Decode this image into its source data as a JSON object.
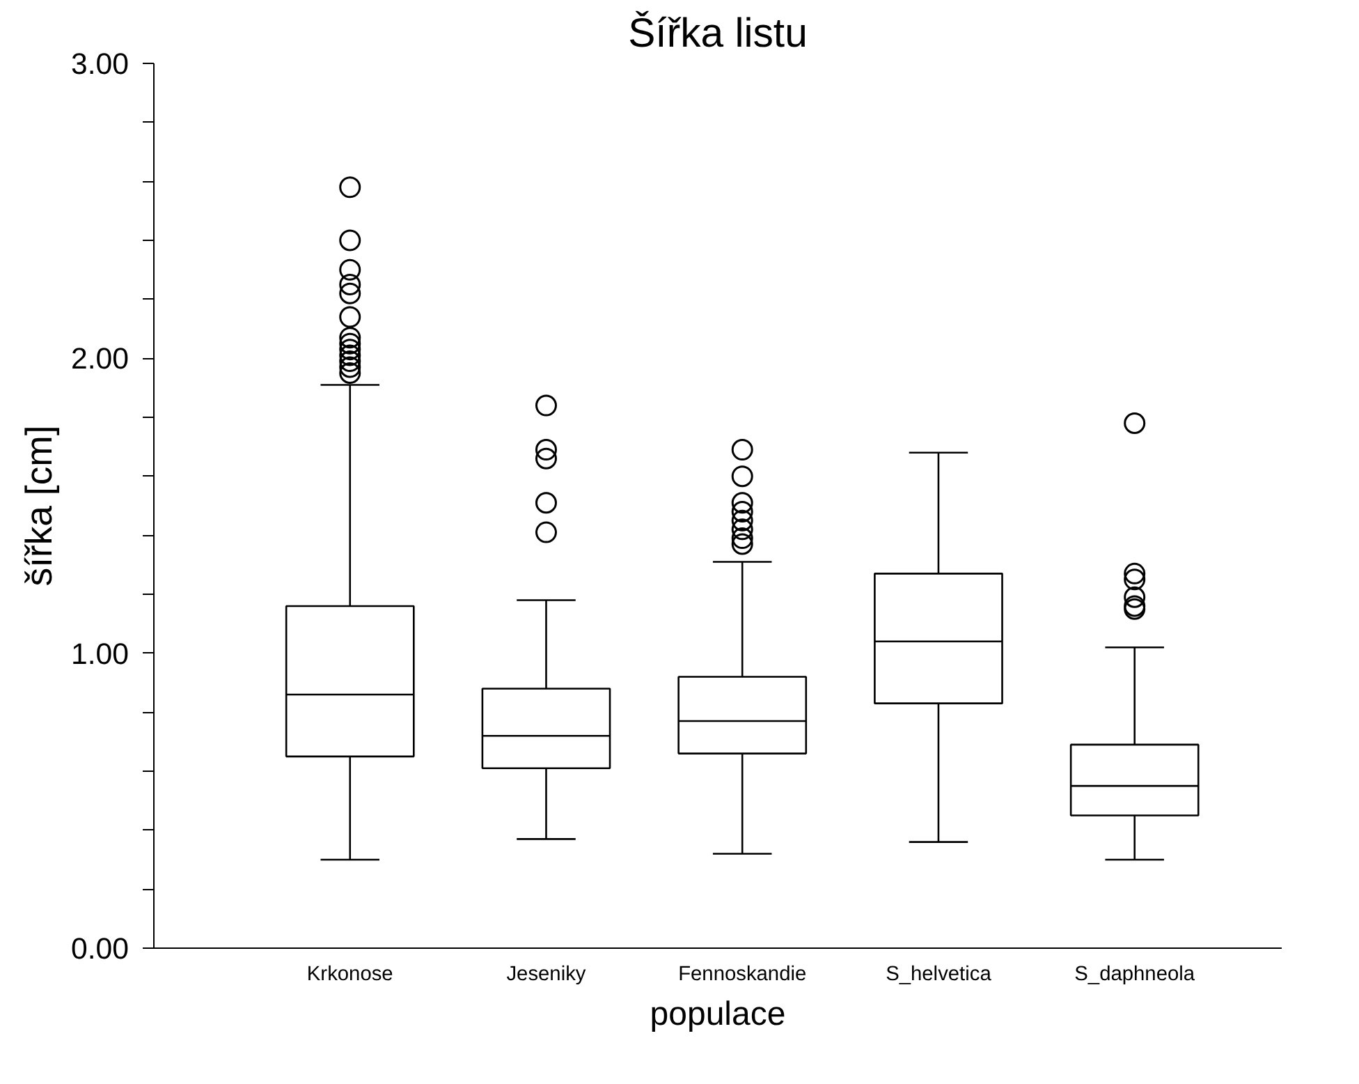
{
  "chart_data": {
    "type": "box",
    "title": "Šířka listu",
    "xlabel": "populace",
    "ylabel": "šířka [cm]",
    "categories": [
      "Krkonose",
      "Jeseniky",
      "Fennoskandie",
      "S_helvetica",
      "S_daphneola"
    ],
    "boxes": [
      {
        "low": 0.3,
        "q1": 0.65,
        "median": 0.86,
        "q3": 1.16,
        "high": 1.91,
        "outliers": [
          2.58,
          2.4,
          2.3,
          2.25,
          2.22,
          2.14,
          2.07,
          2.05,
          2.03,
          2.01,
          1.99,
          1.97,
          1.95
        ]
      },
      {
        "low": 0.37,
        "q1": 0.61,
        "median": 0.72,
        "q3": 0.88,
        "high": 1.18,
        "outliers": [
          1.84,
          1.69,
          1.66,
          1.51,
          1.41
        ]
      },
      {
        "low": 0.32,
        "q1": 0.66,
        "median": 0.77,
        "q3": 0.92,
        "high": 1.31,
        "outliers": [
          1.69,
          1.6,
          1.51,
          1.48,
          1.45,
          1.42,
          1.39,
          1.37
        ]
      },
      {
        "low": 0.36,
        "q1": 0.83,
        "median": 1.04,
        "q3": 1.27,
        "high": 1.68
      },
      {
        "low": 0.3,
        "q1": 0.45,
        "median": 0.55,
        "q3": 0.69,
        "high": 1.02,
        "outliers": [
          1.78,
          1.27,
          1.25,
          1.19,
          1.16,
          1.15
        ]
      }
    ],
    "color": "#000000",
    "marker": "circle",
    "grid": false,
    "ylim": [
      0,
      3
    ],
    "yticks": [
      {
        "value": 0,
        "label": "0.00"
      },
      {
        "value": 0.2,
        "label": null
      },
      {
        "value": 0.4,
        "label": null
      },
      {
        "value": 0.6,
        "label": null
      },
      {
        "value": 0.8,
        "label": null
      },
      {
        "value": 1,
        "label": "1.00"
      },
      {
        "value": 1.2,
        "label": null
      },
      {
        "value": 1.4,
        "label": null
      },
      {
        "value": 1.6,
        "label": null
      },
      {
        "value": 1.8,
        "label": null
      },
      {
        "value": 2,
        "label": "2.00"
      },
      {
        "value": 2.2,
        "label": null
      },
      {
        "value": 2.4,
        "label": null
      },
      {
        "value": 2.6,
        "label": null
      },
      {
        "value": 2.8,
        "label": null
      },
      {
        "value": 3,
        "label": "3.00"
      }
    ]
  }
}
